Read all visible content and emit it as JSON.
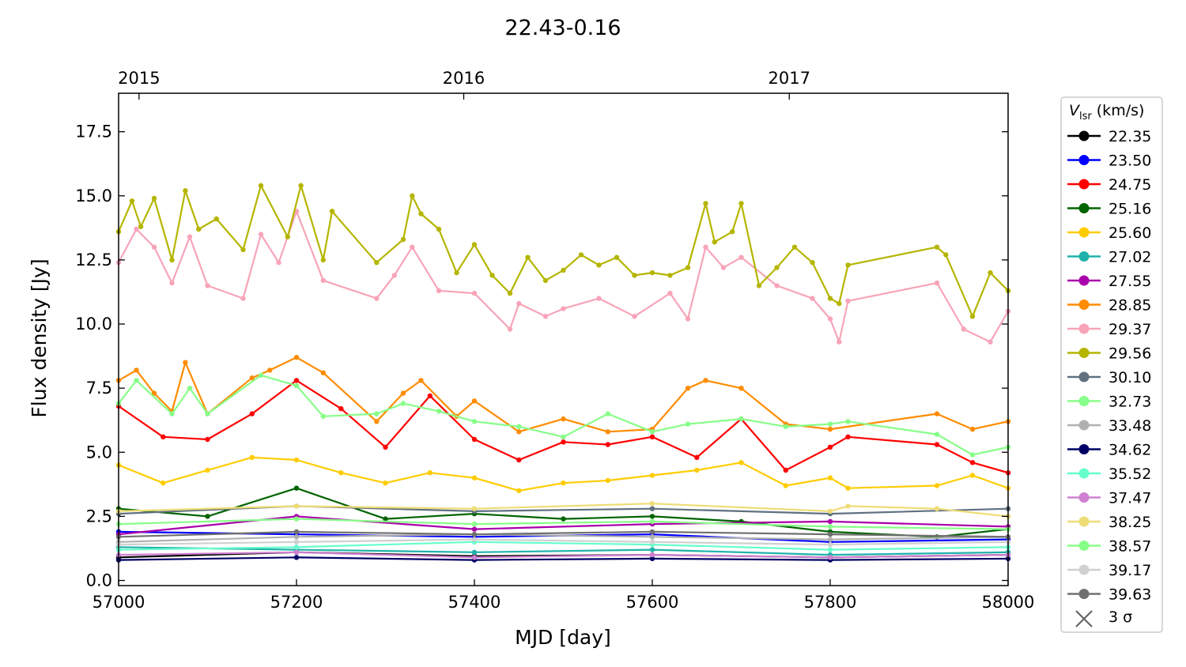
{
  "chart_data": {
    "type": "line",
    "title": "22.43-0.16",
    "xlabel": "MJD [day]",
    "ylabel": "Flux density [Jy]",
    "xlim": [
      57000,
      58000
    ],
    "ylim": [
      -0.2,
      19.0
    ],
    "xticks": [
      57000,
      57200,
      57400,
      57600,
      57800,
      58000
    ],
    "yticks": [
      0.0,
      2.5,
      5.0,
      7.5,
      10.0,
      12.5,
      15.0,
      17.5
    ],
    "ytick_labels": [
      "0.0",
      "2.5",
      "5.0",
      "7.5",
      "10.0",
      "12.5",
      "15.0",
      "17.5"
    ],
    "top_axis": {
      "labels": [
        "2015",
        "2016",
        "2017"
      ],
      "positions_mjd": [
        57023,
        57388,
        57754
      ]
    },
    "grid": false,
    "legend": {
      "title_main": "V",
      "title_sub": "lsr",
      "title_unit": " (km/s)",
      "placement": "right",
      "sigma_label": "3 σ",
      "sigma_color": "#666666"
    },
    "series": [
      {
        "name": "22.35",
        "color": "#000000",
        "x": [
          57000,
          57200,
          57400,
          57600,
          57800,
          58000
        ],
        "y": [
          0.9,
          1.1,
          0.95,
          1.0,
          0.9,
          1.0
        ]
      },
      {
        "name": "23.50",
        "color": "#0000ff",
        "x": [
          57000,
          57200,
          57400,
          57600,
          57800,
          58000
        ],
        "y": [
          1.9,
          1.8,
          1.7,
          1.8,
          1.5,
          1.6
        ]
      },
      {
        "name": "24.75",
        "color": "#ff0000",
        "x": [
          57000,
          57050,
          57100,
          57150,
          57200,
          57250,
          57300,
          57350,
          57400,
          57450,
          57500,
          57550,
          57600,
          57650,
          57700,
          57750,
          57800,
          57820,
          57920,
          57960,
          58000
        ],
        "y": [
          6.8,
          5.6,
          5.5,
          6.5,
          7.8,
          6.7,
          5.2,
          7.2,
          5.5,
          4.7,
          5.4,
          5.3,
          5.6,
          4.8,
          6.3,
          4.3,
          5.2,
          5.6,
          5.3,
          4.6,
          4.2
        ]
      },
      {
        "name": "25.16",
        "color": "#006400",
        "x": [
          57000,
          57100,
          57200,
          57300,
          57400,
          57500,
          57600,
          57700,
          57800,
          57920,
          58000
        ],
        "y": [
          2.8,
          2.5,
          3.6,
          2.4,
          2.6,
          2.4,
          2.5,
          2.3,
          1.9,
          1.7,
          2.0
        ]
      },
      {
        "name": "25.60",
        "color": "#ffcc00",
        "x": [
          57000,
          57050,
          57100,
          57150,
          57200,
          57250,
          57300,
          57350,
          57400,
          57450,
          57500,
          57550,
          57600,
          57650,
          57700,
          57750,
          57800,
          57820,
          57920,
          57960,
          58000
        ],
        "y": [
          4.5,
          3.8,
          4.3,
          4.8,
          4.7,
          4.2,
          3.8,
          4.2,
          4.0,
          3.5,
          3.8,
          3.9,
          4.1,
          4.3,
          4.6,
          3.7,
          4.0,
          3.6,
          3.7,
          4.1,
          3.6
        ]
      },
      {
        "name": "27.02",
        "color": "#20b2aa",
        "x": [
          57000,
          57200,
          57400,
          57600,
          57800,
          58000
        ],
        "y": [
          1.3,
          1.2,
          1.1,
          1.2,
          1.0,
          1.1
        ]
      },
      {
        "name": "27.55",
        "color": "#aa00aa",
        "x": [
          57000,
          57200,
          57400,
          57600,
          57800,
          58000
        ],
        "y": [
          1.8,
          2.5,
          2.0,
          2.2,
          2.3,
          2.1
        ]
      },
      {
        "name": "28.85",
        "color": "#ff8c00",
        "x": [
          57000,
          57020,
          57040,
          57060,
          57075,
          57100,
          57150,
          57170,
          57200,
          57230,
          57290,
          57320,
          57340,
          57380,
          57400,
          57450,
          57500,
          57550,
          57600,
          57640,
          57660,
          57700,
          57750,
          57800,
          57920,
          57960,
          58000
        ],
        "y": [
          7.8,
          8.2,
          7.3,
          6.6,
          8.5,
          6.5,
          7.9,
          8.2,
          8.7,
          8.1,
          6.2,
          7.3,
          7.8,
          6.4,
          7.0,
          5.8,
          6.3,
          5.8,
          5.9,
          7.5,
          7.8,
          7.5,
          6.1,
          5.9,
          6.5,
          5.9,
          6.2
        ]
      },
      {
        "name": "29.37",
        "color": "#f8a4b8",
        "x": [
          57000,
          57020,
          57040,
          57060,
          57080,
          57100,
          57140,
          57160,
          57180,
          57200,
          57230,
          57290,
          57310,
          57330,
          57360,
          57400,
          57440,
          57450,
          57480,
          57500,
          57540,
          57580,
          57620,
          57640,
          57660,
          57680,
          57700,
          57740,
          57780,
          57800,
          57810,
          57820,
          57920,
          57950,
          57980,
          58000
        ],
        "y": [
          12.4,
          13.7,
          13.0,
          11.6,
          13.4,
          11.5,
          11.0,
          13.5,
          12.4,
          14.4,
          11.7,
          11.0,
          11.9,
          13.0,
          11.3,
          11.2,
          9.8,
          10.8,
          10.3,
          10.6,
          11.0,
          10.3,
          11.2,
          10.2,
          13.0,
          12.2,
          12.6,
          11.5,
          11.0,
          10.2,
          9.3,
          10.9,
          11.6,
          9.8,
          9.3,
          10.5
        ]
      },
      {
        "name": "29.56",
        "color": "#b5b500",
        "x": [
          57000,
          57015,
          57025,
          57040,
          57060,
          57075,
          57090,
          57110,
          57140,
          57160,
          57190,
          57205,
          57230,
          57240,
          57290,
          57320,
          57330,
          57340,
          57360,
          57380,
          57400,
          57420,
          57440,
          57460,
          57480,
          57500,
          57520,
          57540,
          57560,
          57580,
          57600,
          57620,
          57640,
          57660,
          57670,
          57690,
          57700,
          57720,
          57740,
          57760,
          57780,
          57800,
          57810,
          57820,
          57920,
          57930,
          57960,
          57980,
          58000
        ],
        "y": [
          13.6,
          14.8,
          13.8,
          14.9,
          12.5,
          15.2,
          13.7,
          14.1,
          12.9,
          15.4,
          13.4,
          15.4,
          12.5,
          14.4,
          12.4,
          13.3,
          15.0,
          14.3,
          13.7,
          12.0,
          13.1,
          11.9,
          11.2,
          12.6,
          11.7,
          12.1,
          12.7,
          12.3,
          12.6,
          11.9,
          12.0,
          11.9,
          12.2,
          14.7,
          13.2,
          13.6,
          14.7,
          11.5,
          12.2,
          13.0,
          12.4,
          11.0,
          10.8,
          12.3,
          13.0,
          12.7,
          10.3,
          12.0,
          11.3
        ]
      },
      {
        "name": "30.10",
        "color": "#607080",
        "x": [
          57000,
          57200,
          57400,
          57600,
          57800,
          58000
        ],
        "y": [
          2.6,
          2.9,
          2.7,
          2.8,
          2.6,
          2.8
        ]
      },
      {
        "name": "32.73",
        "color": "#88ff88",
        "x": [
          57000,
          57020,
          57060,
          57080,
          57100,
          57160,
          57200,
          57230,
          57290,
          57320,
          57360,
          57400,
          57450,
          57500,
          57550,
          57600,
          57640,
          57700,
          57750,
          57800,
          57820,
          57920,
          57960,
          58000
        ],
        "y": [
          6.9,
          7.8,
          6.5,
          7.5,
          6.5,
          8.0,
          7.6,
          6.4,
          6.5,
          6.9,
          6.6,
          6.2,
          6.0,
          5.6,
          6.5,
          5.8,
          6.1,
          6.3,
          6.0,
          6.1,
          6.2,
          5.7,
          4.9,
          5.2
        ]
      },
      {
        "name": "33.48",
        "color": "#b0b0b0",
        "x": [
          57000,
          57200,
          57400,
          57600,
          57800,
          58000
        ],
        "y": [
          1.5,
          1.7,
          1.8,
          1.7,
          1.6,
          1.7
        ]
      },
      {
        "name": "34.62",
        "color": "#000066",
        "x": [
          57000,
          57200,
          57400,
          57600,
          57800,
          58000
        ],
        "y": [
          0.8,
          0.9,
          0.8,
          0.85,
          0.8,
          0.85
        ]
      },
      {
        "name": "35.52",
        "color": "#66ffcc",
        "x": [
          57000,
          57200,
          57400,
          57600,
          57800,
          58000
        ],
        "y": [
          1.2,
          1.3,
          1.5,
          1.4,
          1.2,
          1.3
        ]
      },
      {
        "name": "37.47",
        "color": "#d080d0",
        "x": [
          57000,
          57200,
          57400,
          57600,
          57800,
          58000
        ],
        "y": [
          1.0,
          1.1,
          0.9,
          1.0,
          0.9,
          1.0
        ]
      },
      {
        "name": "38.25",
        "color": "#eedd77",
        "x": [
          57000,
          57200,
          57400,
          57600,
          57800,
          57820,
          57920,
          58000
        ],
        "y": [
          2.7,
          2.9,
          2.8,
          3.0,
          2.7,
          2.9,
          2.8,
          2.5
        ]
      },
      {
        "name": "38.57",
        "color": "#88ff88",
        "x": [
          57000,
          57200,
          57400,
          57600,
          57800,
          58000
        ],
        "y": [
          2.2,
          2.4,
          2.2,
          2.3,
          2.1,
          2.0
        ]
      },
      {
        "name": "39.17",
        "color": "#d0d0d0",
        "x": [
          57000,
          57200,
          57400,
          57600,
          57800,
          58000
        ],
        "y": [
          1.4,
          1.5,
          1.6,
          1.5,
          1.4,
          1.5
        ]
      },
      {
        "name": "39.63",
        "color": "#707070",
        "x": [
          57000,
          57200,
          57400,
          57600,
          57800,
          58000
        ],
        "y": [
          1.7,
          1.9,
          1.8,
          1.9,
          1.8,
          1.7
        ]
      }
    ]
  }
}
